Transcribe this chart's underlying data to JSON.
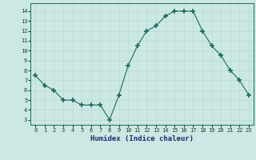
{
  "x": [
    0,
    1,
    2,
    3,
    4,
    5,
    6,
    7,
    8,
    9,
    10,
    11,
    12,
    13,
    14,
    15,
    16,
    17,
    18,
    19,
    20,
    21,
    22,
    23
  ],
  "y": [
    7.5,
    6.5,
    6.0,
    5.0,
    5.0,
    4.5,
    4.5,
    4.5,
    3.0,
    5.5,
    8.5,
    10.5,
    12.0,
    12.5,
    13.5,
    14.0,
    14.0,
    14.0,
    12.0,
    10.5,
    9.5,
    8.0,
    7.0,
    5.5
  ],
  "xlabel": "Humidex (Indice chaleur)",
  "xlim": [
    -0.5,
    23.5
  ],
  "ylim": [
    2.5,
    14.8
  ],
  "yticks": [
    3,
    4,
    5,
    6,
    7,
    8,
    9,
    10,
    11,
    12,
    13,
    14
  ],
  "xticks": [
    0,
    1,
    2,
    3,
    4,
    5,
    6,
    7,
    8,
    9,
    10,
    11,
    12,
    13,
    14,
    15,
    16,
    17,
    18,
    19,
    20,
    21,
    22,
    23
  ],
  "line_color": "#1a6b5a",
  "marker": "+",
  "marker_size": 4,
  "bg_color": "#cce8e4",
  "grid_color": "#b8d8d4",
  "fig_bg": "#cce8e4",
  "xlabel_color": "#1a2a6e",
  "tick_label_color": "#1a3a2e",
  "spine_color": "#1a6b5a"
}
